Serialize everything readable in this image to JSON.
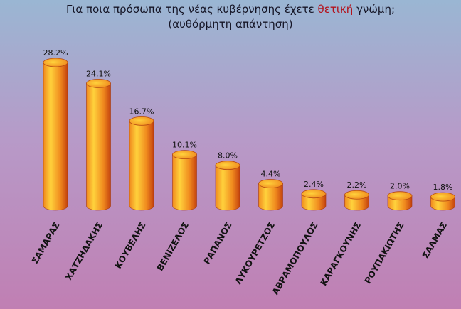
{
  "title_prefix": "Για ποια πρόσωπα της νέας κυβέρνησης έχετε",
  "title_highlight": "θετική",
  "title_suffix": "γνώμη;",
  "subtitle": "(αυθόρμητη απάντηση)",
  "colors": {
    "highlight": "#b3121c",
    "bar_light": "#ffd23c",
    "bar_mid": "#f08a1e",
    "bar_dark": "#c4420e",
    "background_top": "#9ab6d3",
    "background_mid": "#b79ac8",
    "background_bottom": "#c07fb3"
  },
  "chart_data": {
    "type": "bar",
    "title": "Για ποια πρόσωπα της νέας κυβέρνησης έχετε θετική γνώμη;",
    "subtitle": "(αυθόρμητη απάντηση)",
    "categories": [
      "ΣΑΜΑΡΑΣ",
      "ΧΑΤΖΗΔΑΚΗΣ",
      "ΚΟΥΒΕΛΗΣ",
      "ΒΕΝΙΖΕΛΟΣ",
      "ΡΑΠΑΝΟΣ",
      "ΛΥΚΟΥΡΕΤΖΟΣ",
      "ΑΒΡΑΜΟΠΟΥΛΟΣ",
      "ΚΑΡΑΓΚΟΥΝΗΣ",
      "ΡΟΥΠΑΚΙΩΤΗΣ",
      "ΣΑΛΜΑΣ"
    ],
    "values": [
      28.2,
      24.1,
      16.7,
      10.1,
      8.0,
      4.4,
      2.4,
      2.2,
      2.0,
      1.8
    ],
    "value_labels": [
      "28.2%",
      "24.1%",
      "16.7%",
      "10.1%",
      "8.0%",
      "4.4%",
      "2.4%",
      "2.2%",
      "2.0%",
      "1.8%"
    ],
    "xlabel": "",
    "ylabel": "",
    "ylim": [
      0,
      30
    ],
    "grid": false,
    "legend": "none",
    "bar_style": "3d-cylinder"
  }
}
